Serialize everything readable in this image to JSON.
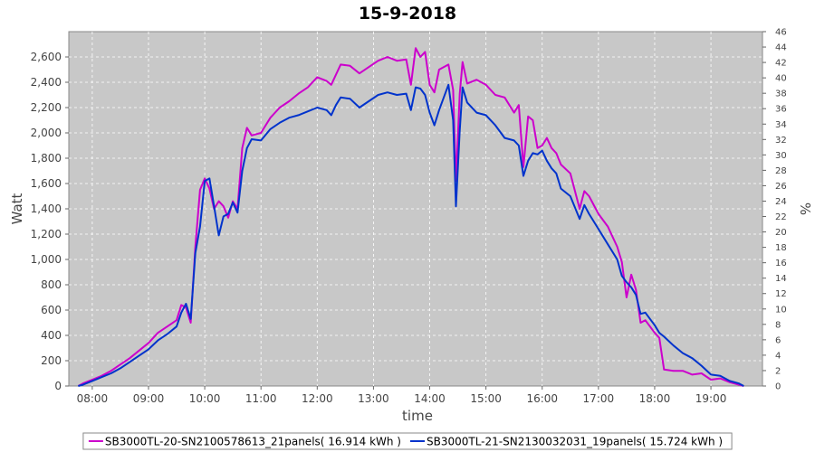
{
  "chart_data": {
    "type": "line",
    "title": "15-9-2018",
    "xlabel": "time",
    "ylabel": "Watt",
    "y2label": "%",
    "x_range": [
      "07:35",
      "19:55"
    ],
    "ylim": [
      0,
      2800
    ],
    "y2lim": [
      0,
      46
    ],
    "xticks": [
      "08:00",
      "09:00",
      "10:00",
      "11:00",
      "12:00",
      "13:00",
      "14:00",
      "15:00",
      "16:00",
      "17:00",
      "18:00",
      "19:00"
    ],
    "yticks": [
      "0",
      "200",
      "400",
      "600",
      "800",
      "1,000",
      "1,200",
      "1,400",
      "1,600",
      "1,800",
      "2,000",
      "2,200",
      "2,400",
      "2,600"
    ],
    "y2ticks": [
      "0",
      "2",
      "4",
      "6",
      "8",
      "10",
      "12",
      "14",
      "16",
      "18",
      "20",
      "22",
      "24",
      "26",
      "28",
      "30",
      "32",
      "34",
      "36",
      "38",
      "40",
      "42",
      "44",
      "46"
    ],
    "grid": true,
    "legend_position": "bottom",
    "series": [
      {
        "name": "SB3000TL-20-SN2100578613_21panels( 16.914 kWh )",
        "color": "#cc00cc",
        "points": [
          [
            "07:45",
            0
          ],
          [
            "07:50",
            20
          ],
          [
            "08:00",
            50
          ],
          [
            "08:10",
            80
          ],
          [
            "08:20",
            120
          ],
          [
            "08:30",
            170
          ],
          [
            "08:40",
            220
          ],
          [
            "08:50",
            280
          ],
          [
            "09:00",
            340
          ],
          [
            "09:10",
            420
          ],
          [
            "09:20",
            470
          ],
          [
            "09:30",
            520
          ],
          [
            "09:35",
            640
          ],
          [
            "09:40",
            620
          ],
          [
            "09:45",
            500
          ],
          [
            "09:50",
            1100
          ],
          [
            "09:55",
            1550
          ],
          [
            "10:00",
            1640
          ],
          [
            "10:05",
            1560
          ],
          [
            "10:10",
            1400
          ],
          [
            "10:15",
            1460
          ],
          [
            "10:20",
            1420
          ],
          [
            "10:25",
            1330
          ],
          [
            "10:30",
            1460
          ],
          [
            "10:35",
            1400
          ],
          [
            "10:40",
            1880
          ],
          [
            "10:45",
            2040
          ],
          [
            "10:50",
            1980
          ],
          [
            "11:00",
            2000
          ],
          [
            "11:10",
            2120
          ],
          [
            "11:20",
            2200
          ],
          [
            "11:30",
            2250
          ],
          [
            "11:40",
            2310
          ],
          [
            "11:50",
            2360
          ],
          [
            "12:00",
            2440
          ],
          [
            "12:10",
            2410
          ],
          [
            "12:15",
            2380
          ],
          [
            "12:20",
            2460
          ],
          [
            "12:25",
            2540
          ],
          [
            "12:35",
            2530
          ],
          [
            "12:45",
            2470
          ],
          [
            "12:55",
            2520
          ],
          [
            "13:05",
            2570
          ],
          [
            "13:15",
            2600
          ],
          [
            "13:25",
            2570
          ],
          [
            "13:35",
            2580
          ],
          [
            "13:40",
            2380
          ],
          [
            "13:45",
            2670
          ],
          [
            "13:50",
            2600
          ],
          [
            "13:55",
            2640
          ],
          [
            "14:00",
            2380
          ],
          [
            "14:05",
            2320
          ],
          [
            "14:10",
            2500
          ],
          [
            "14:20",
            2540
          ],
          [
            "14:25",
            2340
          ],
          [
            "14:28",
            1620
          ],
          [
            "14:32",
            2310
          ],
          [
            "14:35",
            2560
          ],
          [
            "14:40",
            2390
          ],
          [
            "14:50",
            2420
          ],
          [
            "15:00",
            2380
          ],
          [
            "15:10",
            2300
          ],
          [
            "15:20",
            2280
          ],
          [
            "15:30",
            2160
          ],
          [
            "15:35",
            2220
          ],
          [
            "15:40",
            1730
          ],
          [
            "15:45",
            2130
          ],
          [
            "15:50",
            2100
          ],
          [
            "15:55",
            1880
          ],
          [
            "16:00",
            1900
          ],
          [
            "16:05",
            1960
          ],
          [
            "16:10",
            1880
          ],
          [
            "16:15",
            1840
          ],
          [
            "16:20",
            1750
          ],
          [
            "16:30",
            1680
          ],
          [
            "16:40",
            1400
          ],
          [
            "16:45",
            1540
          ],
          [
            "16:50",
            1500
          ],
          [
            "17:00",
            1360
          ],
          [
            "17:10",
            1260
          ],
          [
            "17:20",
            1100
          ],
          [
            "17:25",
            980
          ],
          [
            "17:30",
            700
          ],
          [
            "17:35",
            880
          ],
          [
            "17:40",
            760
          ],
          [
            "17:45",
            500
          ],
          [
            "17:50",
            520
          ],
          [
            "18:00",
            420
          ],
          [
            "18:05",
            380
          ],
          [
            "18:10",
            130
          ],
          [
            "18:20",
            120
          ],
          [
            "18:30",
            120
          ],
          [
            "18:40",
            90
          ],
          [
            "18:50",
            100
          ],
          [
            "19:00",
            50
          ],
          [
            "19:10",
            60
          ],
          [
            "19:20",
            30
          ],
          [
            "19:35",
            0
          ]
        ]
      },
      {
        "name": "SB3000TL-21-SN2130032031_19panels( 15.724 kWh )",
        "color": "#0033cc",
        "points": [
          [
            "07:45",
            0
          ],
          [
            "07:50",
            10
          ],
          [
            "08:00",
            40
          ],
          [
            "08:10",
            70
          ],
          [
            "08:20",
            100
          ],
          [
            "08:30",
            140
          ],
          [
            "08:40",
            190
          ],
          [
            "08:50",
            240
          ],
          [
            "09:00",
            290
          ],
          [
            "09:10",
            360
          ],
          [
            "09:20",
            410
          ],
          [
            "09:30",
            470
          ],
          [
            "09:35",
            580
          ],
          [
            "09:40",
            650
          ],
          [
            "09:45",
            530
          ],
          [
            "09:50",
            1050
          ],
          [
            "09:55",
            1260
          ],
          [
            "10:00",
            1620
          ],
          [
            "10:05",
            1640
          ],
          [
            "10:10",
            1420
          ],
          [
            "10:15",
            1190
          ],
          [
            "10:20",
            1340
          ],
          [
            "10:25",
            1360
          ],
          [
            "10:30",
            1450
          ],
          [
            "10:35",
            1370
          ],
          [
            "10:40",
            1700
          ],
          [
            "10:45",
            1880
          ],
          [
            "10:50",
            1950
          ],
          [
            "11:00",
            1940
          ],
          [
            "11:10",
            2030
          ],
          [
            "11:20",
            2080
          ],
          [
            "11:30",
            2120
          ],
          [
            "11:40",
            2140
          ],
          [
            "11:50",
            2170
          ],
          [
            "12:00",
            2200
          ],
          [
            "12:10",
            2180
          ],
          [
            "12:15",
            2140
          ],
          [
            "12:20",
            2220
          ],
          [
            "12:25",
            2280
          ],
          [
            "12:35",
            2270
          ],
          [
            "12:45",
            2200
          ],
          [
            "12:55",
            2250
          ],
          [
            "13:05",
            2300
          ],
          [
            "13:15",
            2320
          ],
          [
            "13:25",
            2300
          ],
          [
            "13:35",
            2310
          ],
          [
            "13:40",
            2180
          ],
          [
            "13:45",
            2360
          ],
          [
            "13:50",
            2350
          ],
          [
            "13:55",
            2300
          ],
          [
            "14:00",
            2160
          ],
          [
            "14:05",
            2060
          ],
          [
            "14:10",
            2180
          ],
          [
            "14:20",
            2380
          ],
          [
            "14:25",
            2100
          ],
          [
            "14:28",
            1420
          ],
          [
            "14:32",
            2020
          ],
          [
            "14:35",
            2360
          ],
          [
            "14:40",
            2240
          ],
          [
            "14:50",
            2160
          ],
          [
            "15:00",
            2140
          ],
          [
            "15:10",
            2060
          ],
          [
            "15:20",
            1960
          ],
          [
            "15:30",
            1940
          ],
          [
            "15:35",
            1900
          ],
          [
            "15:40",
            1660
          ],
          [
            "15:45",
            1780
          ],
          [
            "15:50",
            1840
          ],
          [
            "15:55",
            1830
          ],
          [
            "16:00",
            1860
          ],
          [
            "16:05",
            1780
          ],
          [
            "16:10",
            1720
          ],
          [
            "16:15",
            1680
          ],
          [
            "16:20",
            1560
          ],
          [
            "16:30",
            1500
          ],
          [
            "16:40",
            1320
          ],
          [
            "16:45",
            1430
          ],
          [
            "16:50",
            1360
          ],
          [
            "17:00",
            1240
          ],
          [
            "17:10",
            1120
          ],
          [
            "17:20",
            1000
          ],
          [
            "17:25",
            870
          ],
          [
            "17:30",
            820
          ],
          [
            "17:35",
            780
          ],
          [
            "17:40",
            720
          ],
          [
            "17:45",
            570
          ],
          [
            "17:50",
            580
          ],
          [
            "18:00",
            480
          ],
          [
            "18:05",
            420
          ],
          [
            "18:10",
            390
          ],
          [
            "18:20",
            320
          ],
          [
            "18:30",
            260
          ],
          [
            "18:40",
            220
          ],
          [
            "18:50",
            160
          ],
          [
            "19:00",
            90
          ],
          [
            "19:10",
            80
          ],
          [
            "19:20",
            40
          ],
          [
            "19:30",
            20
          ],
          [
            "19:35",
            0
          ]
        ]
      }
    ]
  }
}
